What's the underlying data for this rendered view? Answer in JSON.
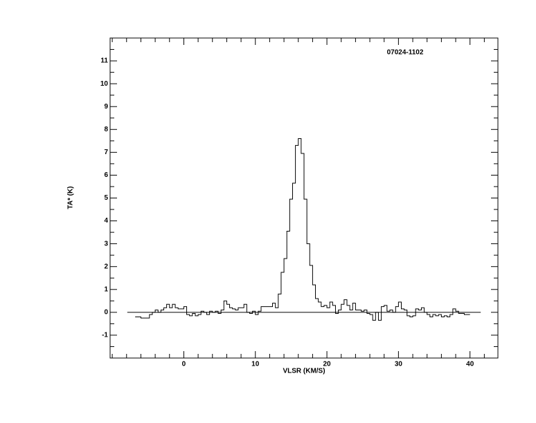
{
  "chart_data": {
    "type": "step",
    "title": "07024-1102",
    "xlabel": "VLSR (KM/S)",
    "ylabel": "TA* (K)",
    "xlim": [
      -10.3,
      43.9
    ],
    "ylim": [
      -2,
      12
    ],
    "xticks": [
      0,
      10,
      20,
      30,
      40
    ],
    "yticks": [
      -1,
      0,
      1,
      2,
      3,
      4,
      5,
      6,
      7,
      8,
      9,
      10,
      11
    ],
    "xminorticks": [
      -10,
      -8,
      -6,
      -4,
      -2,
      2,
      4,
      6,
      8,
      12,
      14,
      16,
      18,
      22,
      24,
      26,
      28,
      32,
      34,
      36,
      38,
      42
    ],
    "yminorticks": [
      -1.5,
      -0.5,
      0.5,
      1.5,
      2.5,
      3.5,
      4.5,
      5.5,
      6.5,
      7.5,
      8.5,
      9.5,
      10.5,
      11.5
    ],
    "channel_width": 0.4,
    "color": "#000000",
    "baseline_x": [
      -7.9,
      41.5
    ],
    "baseline_y": 0,
    "x": [
      -6.6,
      -6.2,
      -5.8,
      -5.4,
      -5.0,
      -4.6,
      -4.2,
      -3.8,
      -3.4,
      -3.0,
      -2.6,
      -2.2,
      -1.8,
      -1.4,
      -1.0,
      -0.6,
      -0.2,
      0.2,
      0.6,
      1.0,
      1.4,
      1.8,
      2.2,
      2.6,
      3.0,
      3.4,
      3.8,
      4.2,
      4.6,
      5.0,
      5.4,
      5.8,
      6.2,
      6.6,
      7.0,
      7.4,
      7.8,
      8.2,
      8.6,
      9.0,
      9.4,
      9.8,
      10.2,
      10.6,
      11.0,
      11.4,
      11.8,
      12.2,
      12.6,
      13.0,
      13.4,
      13.8,
      14.2,
      14.6,
      15.0,
      15.4,
      15.8,
      16.2,
      16.6,
      17.0,
      17.4,
      17.8,
      18.2,
      18.6,
      19.0,
      19.4,
      19.8,
      20.2,
      20.6,
      21.0,
      21.4,
      21.8,
      22.2,
      22.6,
      23.0,
      23.4,
      23.8,
      24.2,
      24.6,
      25.0,
      25.4,
      25.8,
      26.2,
      26.6,
      27.0,
      27.4,
      27.8,
      28.2,
      28.6,
      29.0,
      29.4,
      29.8,
      30.2,
      30.6,
      31.0,
      31.4,
      31.8,
      32.2,
      32.6,
      33.0,
      33.4,
      33.8,
      34.2,
      34.6,
      35.0,
      35.4,
      35.8,
      36.2,
      36.6,
      37.0,
      37.4,
      37.8,
      38.2,
      38.6,
      39.0,
      39.4,
      39.8
    ],
    "values": [
      -0.2,
      -0.2,
      -0.25,
      -0.25,
      -0.25,
      -0.1,
      0.0,
      0.1,
      0.0,
      0.1,
      0.2,
      0.35,
      0.2,
      0.35,
      0.2,
      0.15,
      0.15,
      0.25,
      -0.1,
      -0.15,
      -0.05,
      -0.15,
      -0.1,
      0.05,
      0.0,
      -0.1,
      0.05,
      0.0,
      0.05,
      -0.05,
      0.1,
      0.5,
      0.35,
      0.2,
      0.15,
      0.1,
      0.2,
      0.2,
      0.35,
      0.0,
      -0.05,
      0.05,
      -0.1,
      0.05,
      0.25,
      0.25,
      0.25,
      0.25,
      0.4,
      0.2,
      0.8,
      1.75,
      2.35,
      3.55,
      4.95,
      5.65,
      7.3,
      7.6,
      6.95,
      4.95,
      3.0,
      2.05,
      1.2,
      0.6,
      0.45,
      0.25,
      0.3,
      0.2,
      0.45,
      0.3,
      -0.05,
      0.1,
      0.35,
      0.55,
      0.3,
      0.1,
      0.4,
      0.1,
      0.1,
      0.05,
      0.1,
      -0.05,
      -0.1,
      -0.35,
      0.0,
      -0.35,
      0.25,
      0.3,
      0.05,
      0.1,
      0.0,
      0.25,
      0.45,
      0.15,
      0.1,
      -0.15,
      -0.2,
      -0.15,
      0.15,
      0.1,
      0.2,
      0.0,
      -0.1,
      -0.2,
      -0.1,
      -0.15,
      -0.1,
      -0.2,
      -0.15,
      -0.2,
      -0.1,
      0.15,
      0.05,
      -0.05,
      -0.05,
      -0.1,
      -0.1
    ]
  }
}
